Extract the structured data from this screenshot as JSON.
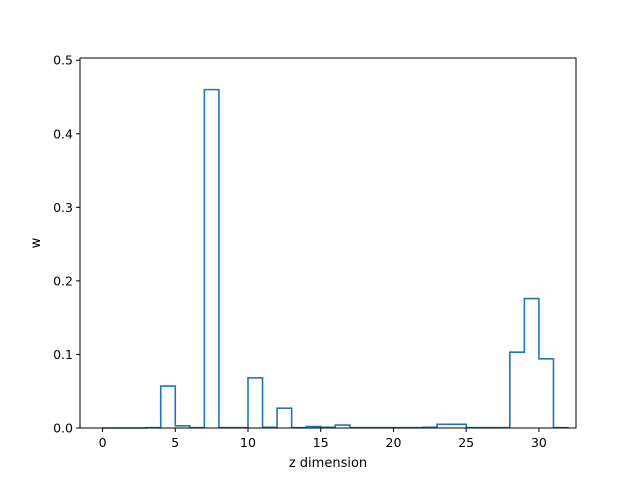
{
  "chart_data": {
    "type": "step",
    "xlabel": "z dimension",
    "ylabel": "w",
    "xlim": [
      -1.55,
      32.55
    ],
    "ylim": [
      0,
      0.503
    ],
    "xticks": [
      0,
      5,
      10,
      15,
      20,
      25,
      30
    ],
    "yticks": [
      0.0,
      0.1,
      0.2,
      0.3,
      0.4,
      0.5
    ],
    "xtick_labels": [
      "0",
      "5",
      "10",
      "15",
      "20",
      "25",
      "30"
    ],
    "ytick_labels": [
      "0.0",
      "0.1",
      "0.2",
      "0.3",
      "0.4",
      "0.5"
    ],
    "grid": false,
    "line_color": "#1f77b4",
    "x_start": 0,
    "bin_width": 1,
    "values": [
      0,
      0,
      0,
      0.0005,
      0.057,
      0.003,
      0.0005,
      0.46,
      0.0005,
      0.0005,
      0.068,
      0.001,
      0.027,
      0.0005,
      0.002,
      0.001,
      0.004,
      0.0005,
      0.0005,
      0.0005,
      0.0005,
      0.0005,
      0.001,
      0.005,
      0.005,
      0.0005,
      0.0005,
      0.0005,
      0.103,
      0.176,
      0.094,
      0.0005
    ]
  }
}
